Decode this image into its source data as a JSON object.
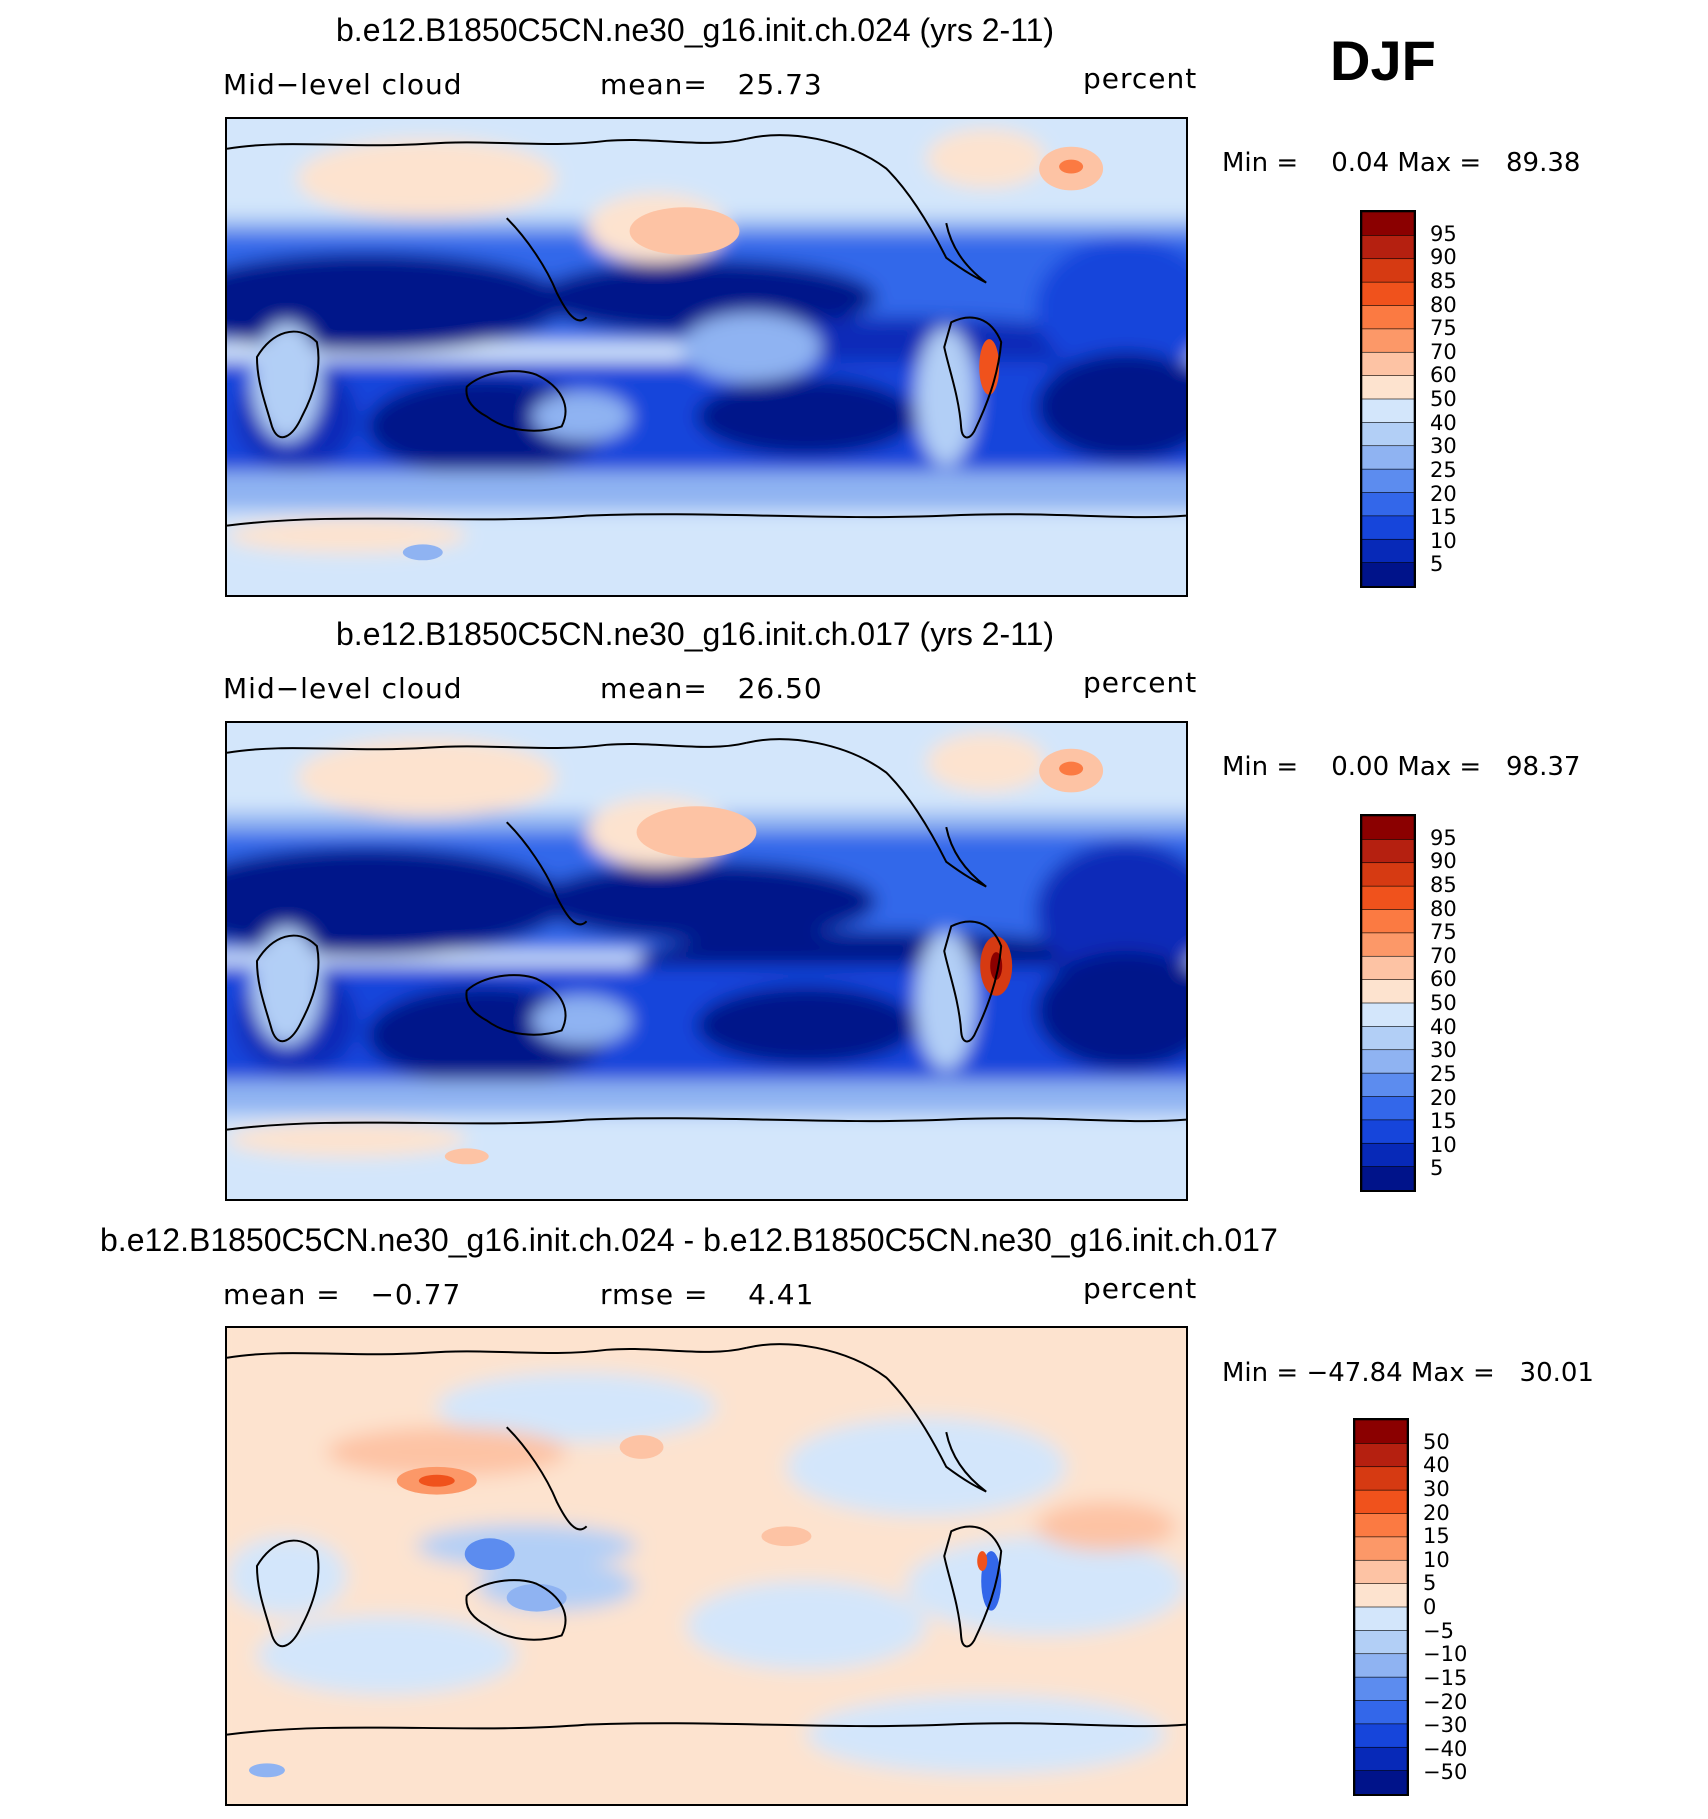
{
  "season": "DJF",
  "panels": [
    {
      "title": "b.e12.B1850C5CN.ne30_g16.init.ch.024 (yrs 2-11)",
      "left_label": "Mid−level cloud",
      "center_label": "mean=   25.73",
      "units": "percent",
      "minmax": "Min =    0.04 Max =   89.38",
      "colorbar_labels": [
        "95",
        "90",
        "85",
        "80",
        "75",
        "70",
        "60",
        "50",
        "40",
        "30",
        "25",
        "20",
        "15",
        "10",
        "5"
      ],
      "colorbar_colors": [
        "#8b0000",
        "#b52010",
        "#d63a12",
        "#f0521c",
        "#fb7a42",
        "#fc9868",
        "#fdc3a4",
        "#fde3cf",
        "#d3e6fb",
        "#b2cff6",
        "#8fb3f2",
        "#5c8cef",
        "#3367ea",
        "#1645db",
        "#0729b8",
        "#00138a"
      ]
    },
    {
      "title": "b.e12.B1850C5CN.ne30_g16.init.ch.017 (yrs 2-11)",
      "left_label": "Mid−level cloud",
      "center_label": "mean=   26.50",
      "units": "percent",
      "minmax": "Min =    0.00 Max =   98.37",
      "colorbar_labels": [
        "95",
        "90",
        "85",
        "80",
        "75",
        "70",
        "60",
        "50",
        "40",
        "30",
        "25",
        "20",
        "15",
        "10",
        "5"
      ],
      "colorbar_colors": [
        "#8b0000",
        "#b52010",
        "#d63a12",
        "#f0521c",
        "#fb7a42",
        "#fc9868",
        "#fdc3a4",
        "#fde3cf",
        "#d3e6fb",
        "#b2cff6",
        "#8fb3f2",
        "#5c8cef",
        "#3367ea",
        "#1645db",
        "#0729b8",
        "#00138a"
      ]
    },
    {
      "title": "b.e12.B1850C5CN.ne30_g16.init.ch.024 - b.e12.B1850C5CN.ne30_g16.init.ch.017",
      "left_label": "mean =   −0.77",
      "center_label": "rmse =    4.41",
      "units": "percent",
      "minmax": "Min = −47.84 Max =   30.01",
      "colorbar_labels": [
        "50",
        "40",
        "30",
        "20",
        "15",
        "10",
        "5",
        "0",
        "−5",
        "−10",
        "−15",
        "−20",
        "−30",
        "−40",
        "−50"
      ],
      "colorbar_colors": [
        "#8b0000",
        "#b52010",
        "#d63a12",
        "#f0521c",
        "#fb7a42",
        "#fc9868",
        "#fdc3a4",
        "#fde3cf",
        "#d3e6fb",
        "#b2cff6",
        "#8fb3f2",
        "#5c8cef",
        "#3367ea",
        "#1645db",
        "#0729b8",
        "#00138a"
      ]
    }
  ],
  "chart_data": [
    {
      "type": "heatmap",
      "title": "b.e12.B1850C5CN.ne30_g16.init.ch.024 (yrs 2-11)",
      "variable": "Mid-level cloud",
      "units": "percent",
      "mean": 25.73,
      "min": 0.04,
      "max": 89.38,
      "levels": [
        5,
        10,
        15,
        20,
        25,
        30,
        40,
        50,
        60,
        70,
        75,
        80,
        85,
        90,
        95
      ]
    },
    {
      "type": "heatmap",
      "title": "b.e12.B1850C5CN.ne30_g16.init.ch.017 (yrs 2-11)",
      "variable": "Mid-level cloud",
      "units": "percent",
      "mean": 26.5,
      "min": 0.0,
      "max": 98.37,
      "levels": [
        5,
        10,
        15,
        20,
        25,
        30,
        40,
        50,
        60,
        70,
        75,
        80,
        85,
        90,
        95
      ]
    },
    {
      "type": "heatmap",
      "title": "b.e12.B1850C5CN.ne30_g16.init.ch.024 - b.e12.B1850C5CN.ne30_g16.init.ch.017",
      "units": "percent",
      "mean": -0.77,
      "rmse": 4.41,
      "min": -47.84,
      "max": 30.01,
      "levels": [
        -50,
        -40,
        -30,
        -20,
        -15,
        -10,
        -5,
        0,
        5,
        10,
        15,
        20,
        30,
        40,
        50
      ]
    }
  ]
}
